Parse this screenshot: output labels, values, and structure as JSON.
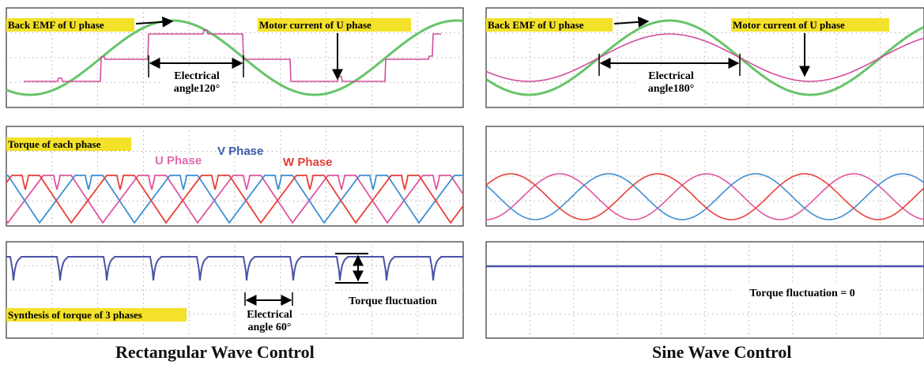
{
  "colors": {
    "background": "#ffffff",
    "grid": "#9a9a9a",
    "frame": "#333333",
    "emf_green": "#66c46a",
    "current_magenta": "#d44e9c",
    "u_phase": "#e0569f",
    "v_phase": "#3f8fd4",
    "w_phase": "#e8403a",
    "synthesis_blue": "#4a53a8",
    "label_highlight": "#f3e12a",
    "u_label": "#e06cb0",
    "v_label": "#3a5aa8",
    "w_label": "#e0403a"
  },
  "rectangular": {
    "caption": "Rectangular Wave Control",
    "panel1": {
      "emf_label": "Back EMF of U phase",
      "current_label": "Motor current of U phase",
      "angle_label_line1": "Electrical",
      "angle_label_line2": "angle120°"
    },
    "panel2": {
      "label": "Torque of each phase",
      "u_phase": "U  Phase",
      "v_phase": "V  Phase",
      "w_phase": "W  Phase"
    },
    "panel3": {
      "label": "Synthesis of torque of 3 phases",
      "fluctuation_label": "Torque fluctuation",
      "angle_label_line1": "Electrical",
      "angle_label_line2": "angle 60°"
    }
  },
  "sine": {
    "caption": "Sine Wave Control",
    "panel1": {
      "emf_label": "Back EMF of U phase",
      "current_label": "Motor current of U phase",
      "angle_label_line1": "Electrical",
      "angle_label_line2": "angle180°"
    },
    "panel3": {
      "fluctuation_label": "Torque fluctuation = 0"
    }
  }
}
